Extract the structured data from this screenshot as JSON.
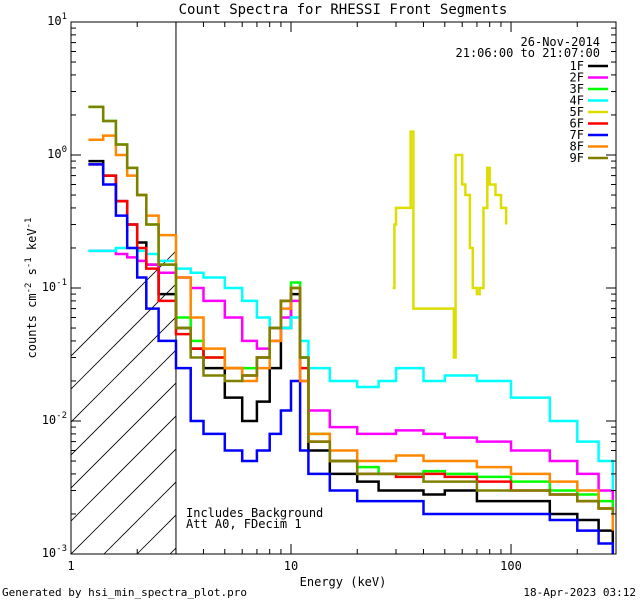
{
  "chart_data": {
    "type": "line",
    "title": "Count Spectra for RHESSI Front Segments",
    "xlabel": "Energy (keV)",
    "ylabel": {
      "base": "counts cm",
      "exp1": "-2",
      "mid": " s",
      "exp2": "-1",
      "end": " keV",
      "exp3": "-1"
    },
    "xscale": "log",
    "yscale": "log",
    "xlim": [
      1.0,
      300.0
    ],
    "ylim": [
      0.001,
      10.0
    ],
    "x_ticks": [
      {
        "value": 1,
        "label": "1"
      },
      {
        "value": 10,
        "label": "10"
      },
      {
        "value": 100,
        "label": "100"
      }
    ],
    "y_ticks": [
      {
        "value": 0.001,
        "base": "10",
        "exp": "-3"
      },
      {
        "value": 0.01,
        "base": "10",
        "exp": "-2"
      },
      {
        "value": 0.1,
        "base": "10",
        "exp": "-1"
      },
      {
        "value": 1,
        "base": "10",
        "exp": "0"
      },
      {
        "value": 10,
        "base": "10",
        "exp": "1"
      }
    ],
    "date": "26-Nov-2014",
    "time_range": "21:06:00 to 21:07:00",
    "annotations": [
      "Includes Background",
      "Att A0, FDecim 1"
    ],
    "hatched_region_max_energy": 3.0,
    "legend_position": "top-right",
    "series": [
      {
        "name": "1F",
        "color": "#000000",
        "x": [
          1.2,
          1.4,
          1.6,
          1.8,
          2.0,
          2.2,
          2.5,
          3.0,
          3.5,
          4.0,
          5.0,
          6.0,
          7.0,
          8.0,
          9.0,
          10.0,
          11.0,
          12.0,
          15.0,
          20.0,
          25.0,
          30.0,
          40.0,
          50.0,
          70.0,
          100.0,
          150.0,
          200.0,
          250.0,
          290.0
        ],
        "values": [
          0.9,
          0.7,
          0.45,
          0.3,
          0.22,
          0.15,
          0.09,
          0.05,
          0.035,
          0.025,
          0.015,
          0.01,
          0.014,
          0.025,
          0.05,
          0.09,
          0.03,
          0.006,
          0.004,
          0.0035,
          0.003,
          0.003,
          0.0028,
          0.003,
          0.0025,
          0.0025,
          0.002,
          0.0018,
          0.0015,
          0.0012
        ]
      },
      {
        "name": "2F",
        "color": "#ff00ff",
        "x": [
          1.2,
          1.4,
          1.6,
          1.8,
          2.0,
          2.2,
          2.5,
          3.0,
          3.5,
          4.0,
          5.0,
          6.0,
          7.0,
          8.0,
          9.0,
          10.0,
          11.0,
          12.0,
          15.0,
          20.0,
          25.0,
          30.0,
          40.0,
          50.0,
          70.0,
          100.0,
          150.0,
          200.0,
          250.0,
          290.0
        ],
        "values": [
          0.19,
          0.19,
          0.18,
          0.17,
          0.16,
          0.15,
          0.13,
          0.12,
          0.1,
          0.08,
          0.06,
          0.04,
          0.035,
          0.04,
          0.06,
          0.08,
          0.02,
          0.012,
          0.009,
          0.008,
          0.008,
          0.0085,
          0.008,
          0.0075,
          0.007,
          0.006,
          0.005,
          0.004,
          0.003,
          0.002
        ]
      },
      {
        "name": "3F",
        "color": "#00ff00",
        "x": [
          1.2,
          1.4,
          1.6,
          1.8,
          2.0,
          2.2,
          2.5,
          3.0,
          3.5,
          4.0,
          5.0,
          6.0,
          7.0,
          8.0,
          9.0,
          10.0,
          11.0,
          12.0,
          15.0,
          20.0,
          25.0,
          30.0,
          40.0,
          50.0,
          70.0,
          100.0,
          150.0,
          200.0,
          250.0,
          290.0
        ],
        "values": [
          2.3,
          1.8,
          1.2,
          0.8,
          0.5,
          0.3,
          0.15,
          0.06,
          0.04,
          0.03,
          0.025,
          0.025,
          0.03,
          0.05,
          0.08,
          0.11,
          0.03,
          0.008,
          0.005,
          0.0045,
          0.004,
          0.004,
          0.0042,
          0.004,
          0.0038,
          0.0035,
          0.003,
          0.0028,
          0.0025,
          0.002
        ]
      },
      {
        "name": "4F",
        "color": "#00ffff",
        "x": [
          1.2,
          1.4,
          1.6,
          1.8,
          2.0,
          2.2,
          2.5,
          3.0,
          3.5,
          4.0,
          5.0,
          6.0,
          7.0,
          8.0,
          9.0,
          10.0,
          11.0,
          12.0,
          15.0,
          20.0,
          25.0,
          30.0,
          40.0,
          50.0,
          70.0,
          100.0,
          150.0,
          200.0,
          250.0,
          290.0
        ],
        "values": [
          0.19,
          0.19,
          0.2,
          0.2,
          0.19,
          0.18,
          0.16,
          0.14,
          0.13,
          0.12,
          0.1,
          0.08,
          0.06,
          0.05,
          0.05,
          0.06,
          0.04,
          0.025,
          0.02,
          0.018,
          0.02,
          0.025,
          0.02,
          0.022,
          0.02,
          0.015,
          0.01,
          0.007,
          0.005,
          0.003
        ]
      },
      {
        "name": "5F",
        "color": "#dddd00",
        "x": [
          29.0,
          29.5,
          30.0,
          35.0,
          36.0,
          55.0,
          56.0,
          60.0,
          62.0,
          65.0,
          67.0,
          70.0,
          72.0,
          75.0,
          78.0,
          80.0,
          85.0,
          90.0,
          95.0
        ],
        "values": [
          0.1,
          0.3,
          0.4,
          1.5,
          0.07,
          0.03,
          1.0,
          0.6,
          0.5,
          0.2,
          0.1,
          0.09,
          0.1,
          0.4,
          0.8,
          0.6,
          0.5,
          0.4,
          0.3
        ]
      },
      {
        "name": "6F",
        "color": "#ff0000",
        "x": [
          1.2,
          1.4,
          1.6,
          1.8,
          2.0,
          2.2,
          2.5,
          3.0,
          3.5,
          4.0,
          5.0,
          6.0,
          7.0,
          8.0,
          9.0,
          10.0,
          11.0,
          12.0,
          15.0,
          20.0,
          25.0,
          30.0,
          40.0,
          50.0,
          70.0,
          100.0,
          150.0,
          200.0,
          250.0,
          290.0
        ],
        "values": [
          0.85,
          0.7,
          0.45,
          0.3,
          0.2,
          0.14,
          0.08,
          0.045,
          0.035,
          0.03,
          0.025,
          0.022,
          0.03,
          0.05,
          0.08,
          0.1,
          0.025,
          0.007,
          0.005,
          0.004,
          0.004,
          0.0038,
          0.004,
          0.0038,
          0.0035,
          0.003,
          0.0028,
          0.0025,
          0.0022,
          0.002
        ]
      },
      {
        "name": "7F",
        "color": "#0000ff",
        "x": [
          1.2,
          1.4,
          1.6,
          1.8,
          2.0,
          2.2,
          2.5,
          3.0,
          3.5,
          4.0,
          5.0,
          6.0,
          7.0,
          8.0,
          9.0,
          10.0,
          11.0,
          12.0,
          15.0,
          20.0,
          25.0,
          30.0,
          40.0,
          50.0,
          70.0,
          100.0,
          150.0,
          200.0,
          250.0,
          290.0
        ],
        "values": [
          0.85,
          0.6,
          0.35,
          0.2,
          0.12,
          0.07,
          0.04,
          0.025,
          0.01,
          0.008,
          0.006,
          0.005,
          0.006,
          0.008,
          0.012,
          0.02,
          0.006,
          0.004,
          0.003,
          0.0025,
          0.0025,
          0.0025,
          0.002,
          0.002,
          0.002,
          0.002,
          0.0018,
          0.0015,
          0.0012,
          0.001
        ]
      },
      {
        "name": "8F",
        "color": "#ff8800",
        "x": [
          1.2,
          1.4,
          1.6,
          1.8,
          2.0,
          2.2,
          2.5,
          3.0,
          3.5,
          4.0,
          5.0,
          6.0,
          7.0,
          8.0,
          9.0,
          10.0,
          11.0,
          12.0,
          15.0,
          20.0,
          25.0,
          30.0,
          40.0,
          50.0,
          70.0,
          100.0,
          150.0,
          200.0,
          250.0,
          290.0
        ],
        "values": [
          1.3,
          1.4,
          1.0,
          0.7,
          0.5,
          0.35,
          0.25,
          0.12,
          0.06,
          0.035,
          0.025,
          0.02,
          0.025,
          0.04,
          0.07,
          0.1,
          0.02,
          0.008,
          0.006,
          0.005,
          0.005,
          0.0055,
          0.005,
          0.005,
          0.0045,
          0.004,
          0.0035,
          0.003,
          0.0022,
          0.0015
        ]
      },
      {
        "name": "9F",
        "color": "#808000",
        "x": [
          1.2,
          1.4,
          1.6,
          1.8,
          2.0,
          2.2,
          2.5,
          3.0,
          3.5,
          4.0,
          5.0,
          6.0,
          7.0,
          8.0,
          9.0,
          10.0,
          11.0,
          12.0,
          15.0,
          20.0,
          25.0,
          30.0,
          40.0,
          50.0,
          70.0,
          100.0,
          150.0,
          200.0,
          250.0,
          290.0
        ],
        "values": [
          2.3,
          1.8,
          1.2,
          0.8,
          0.5,
          0.3,
          0.15,
          0.05,
          0.03,
          0.022,
          0.02,
          0.022,
          0.03,
          0.05,
          0.08,
          0.1,
          0.03,
          0.007,
          0.005,
          0.004,
          0.004,
          0.004,
          0.0035,
          0.0035,
          0.003,
          0.003,
          0.0028,
          0.0025,
          0.0022,
          0.002
        ]
      }
    ]
  },
  "footer": {
    "generated_by": "Generated by hsi_min_spectra_plot.pro",
    "timestamp": "18-Apr-2023 03:12"
  }
}
